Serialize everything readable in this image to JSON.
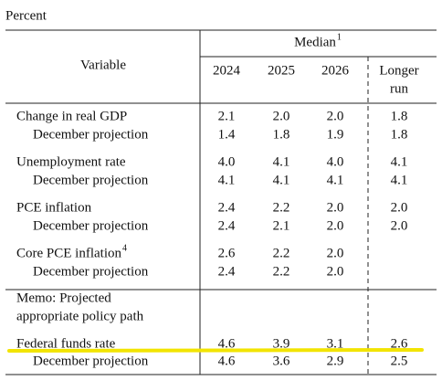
{
  "unit_label": "Percent",
  "header": {
    "variable": "Variable",
    "median": "Median",
    "median_note": "1",
    "years": [
      "2024",
      "2025",
      "2026"
    ],
    "longer_run": [
      "Longer",
      "run"
    ]
  },
  "groups": [
    {
      "label": "Change in real GDP",
      "values": [
        "2.1",
        "2.0",
        "2.0",
        "1.8"
      ],
      "december": {
        "label": "December projection",
        "values": [
          "1.4",
          "1.8",
          "1.9",
          "1.8"
        ]
      }
    },
    {
      "label": "Unemployment rate",
      "values": [
        "4.0",
        "4.1",
        "4.0",
        "4.1"
      ],
      "december": {
        "label": "December projection",
        "values": [
          "4.1",
          "4.1",
          "4.1",
          "4.1"
        ]
      }
    },
    {
      "label": "PCE inflation",
      "values": [
        "2.4",
        "2.2",
        "2.0",
        "2.0"
      ],
      "december": {
        "label": "December projection",
        "values": [
          "2.4",
          "2.1",
          "2.0",
          "2.0"
        ]
      }
    },
    {
      "label": "Core PCE inflation",
      "note": "4",
      "values": [
        "2.6",
        "2.2",
        "2.0"
      ],
      "december": {
        "label": "December projection",
        "values": [
          "2.4",
          "2.2",
          "2.0"
        ]
      }
    }
  ],
  "memo": [
    "Memo: Projected",
    "appropriate policy path"
  ],
  "policy": {
    "label": "Federal funds rate",
    "values": [
      "4.6",
      "3.9",
      "3.1",
      "2.6"
    ],
    "december": {
      "label": "December projection",
      "values": [
        "4.6",
        "3.6",
        "2.9",
        "2.5"
      ]
    }
  }
}
